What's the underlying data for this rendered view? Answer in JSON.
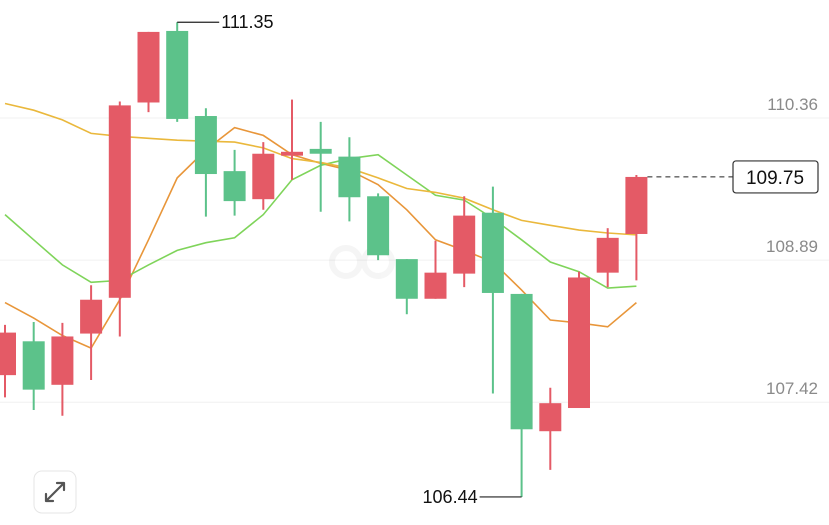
{
  "chart_data": {
    "type": "candlestick",
    "ylim": [
      106.15,
      111.58
    ],
    "yticks": [
      107.42,
      108.89,
      110.36
    ],
    "grid": true,
    "up_color": "#e45a66",
    "down_color": "#5cc28a",
    "series": [
      {
        "open": [
          107.7,
          108.05,
          107.6,
          108.13,
          108.5,
          110.52,
          111.26,
          110.38,
          109.81,
          109.52,
          109.97,
          110.04,
          109.96,
          109.55,
          108.9,
          108.49,
          108.75,
          109.38,
          108.54,
          107.12,
          107.36,
          108.76,
          109.16
        ],
        "high": [
          108.22,
          108.25,
          108.24,
          108.63,
          110.53,
          111.25,
          111.35,
          110.46,
          110.03,
          110.11,
          110.55,
          110.32,
          110.16,
          109.58,
          108.9,
          109.09,
          109.55,
          109.65,
          108.54,
          107.57,
          108.77,
          109.22,
          109.77
        ],
        "low": [
          107.47,
          107.34,
          107.28,
          107.65,
          108.1,
          110.42,
          110.32,
          109.34,
          109.35,
          109.41,
          109.72,
          109.39,
          109.29,
          108.89,
          108.33,
          108.49,
          108.61,
          107.51,
          106.44,
          106.72,
          107.36,
          108.61,
          108.68
        ],
        "close": [
          108.14,
          107.55,
          108.1,
          108.48,
          110.49,
          111.25,
          110.35,
          109.78,
          109.5,
          109.99,
          110.01,
          109.99,
          109.54,
          108.94,
          108.49,
          108.76,
          109.35,
          108.55,
          107.14,
          107.41,
          108.71,
          109.12,
          109.75
        ]
      }
    ],
    "lines": [
      {
        "color": "#e8963a",
        "values": [
          108.45,
          108.29,
          108.11,
          107.98,
          108.48,
          109.1,
          109.74,
          110.03,
          110.26,
          110.18,
          109.98,
          109.89,
          109.82,
          109.67,
          109.41,
          109.1,
          108.99,
          108.87,
          108.58,
          108.27,
          108.24,
          108.2,
          108.45
        ]
      },
      {
        "color": "#7fd45a",
        "values": [
          109.36,
          109.1,
          108.84,
          108.66,
          108.68,
          108.84,
          108.99,
          109.07,
          109.12,
          109.36,
          109.72,
          109.87,
          109.94,
          109.98,
          109.77,
          109.56,
          109.51,
          109.32,
          109.1,
          108.87,
          108.77,
          108.6,
          108.62
        ]
      },
      {
        "color": "#eab83c",
        "values": [
          110.51,
          110.44,
          110.34,
          110.2,
          110.17,
          110.15,
          110.13,
          110.12,
          110.11,
          110.05,
          109.94,
          109.9,
          109.84,
          109.74,
          109.63,
          109.59,
          109.53,
          109.41,
          109.3,
          109.25,
          109.2,
          109.17,
          109.15
        ]
      }
    ]
  }
}
